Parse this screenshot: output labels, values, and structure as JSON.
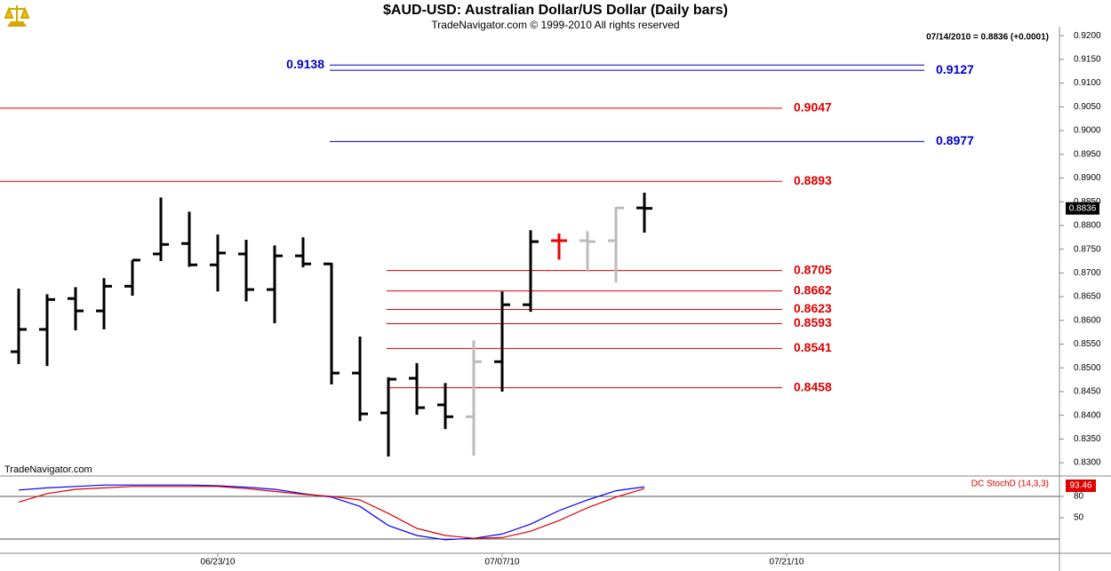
{
  "chart_data": [
    {
      "type": "ohlc",
      "title": "$AUD-USD:  Australian Dollar/US Dollar  (Daily bars)",
      "subtitle": "TradeNavigator.com © 1999-2010 All rights reserved",
      "header": "07/14/2010 = 0.8836 (+0.0001)",
      "watermark": "TradeNavigator.com",
      "categories": [
        null,
        null,
        null,
        null,
        null,
        null,
        null,
        "06/23/10",
        null,
        null,
        null,
        null,
        null,
        null,
        null,
        null,
        null,
        "07/07/10",
        null,
        null,
        null,
        null,
        null,
        null,
        null,
        null,
        null,
        "07/21/10",
        null,
        null,
        null,
        null,
        null,
        null,
        null,
        null,
        null
      ],
      "open": [
        0.8534,
        0.8581,
        0.8646,
        0.862,
        0.8672,
        0.874,
        0.8762,
        0.8717,
        0.874,
        0.8665,
        0.8736,
        0.8719,
        0.8489,
        0.8405,
        0.8478,
        0.8422,
        0.8397,
        0.8513,
        0.8633,
        0.8768,
        0.8768,
        0.8768,
        0.8837,
        null,
        null,
        null,
        null,
        null,
        null,
        null,
        null,
        null,
        null,
        null,
        null,
        null,
        null
      ],
      "high": [
        0.8667,
        0.8655,
        0.867,
        0.8689,
        0.8727,
        0.8859,
        0.8829,
        0.8781,
        0.877,
        0.8758,
        0.8775,
        0.8721,
        0.8566,
        0.848,
        0.851,
        0.8468,
        0.8558,
        0.8661,
        0.879,
        0.8783,
        0.8788,
        0.8839,
        0.8869,
        null,
        null,
        null,
        null,
        null,
        null,
        null,
        null,
        null,
        null,
        null,
        null,
        null,
        null
      ],
      "low": [
        0.8508,
        0.8504,
        0.8579,
        0.8581,
        0.8652,
        0.8725,
        0.8713,
        0.8661,
        0.864,
        0.8594,
        0.8712,
        0.8465,
        0.8388,
        0.8313,
        0.8401,
        0.8371,
        0.8315,
        0.845,
        0.8618,
        0.8728,
        0.8702,
        0.868,
        0.8785,
        null,
        null,
        null,
        null,
        null,
        null,
        null,
        null,
        null,
        null,
        null,
        null,
        null,
        null
      ],
      "close": [
        0.8581,
        0.8644,
        0.862,
        0.8672,
        0.8727,
        0.876,
        0.8717,
        0.8742,
        0.8665,
        0.8736,
        0.8719,
        0.8489,
        0.8403,
        0.8476,
        0.8416,
        0.8397,
        0.8513,
        0.8633,
        0.8766,
        0.8768,
        0.8766,
        0.8837,
        0.8836,
        null,
        null,
        null,
        null,
        null,
        null,
        null,
        null,
        null,
        null,
        null,
        null,
        null,
        null
      ],
      "colors": [
        "#000000",
        "#000000",
        "#000000",
        "#000000",
        "#000000",
        "#000000",
        "#000000",
        "#000000",
        "#000000",
        "#000000",
        "#000000",
        "#000000",
        "#000000",
        "#000000",
        "#000000",
        "#000000",
        "#bbbbbb",
        "#000000",
        "#000000",
        "#ee0000",
        "#bbbbbb",
        "#bbbbbb",
        "#000000",
        null,
        null,
        null,
        null,
        null,
        null,
        null,
        null,
        null,
        null,
        null,
        null,
        null,
        null
      ],
      "ylim": [
        0.8274,
        0.9219
      ],
      "yticks": [
        {
          "value": 0.83,
          "label": "0.8300"
        },
        {
          "value": 0.835,
          "label": "0.8350"
        },
        {
          "value": 0.84,
          "label": "0.8400"
        },
        {
          "value": 0.845,
          "label": "0.8450"
        },
        {
          "value": 0.85,
          "label": "0.8500"
        },
        {
          "value": 0.855,
          "label": "0.8550"
        },
        {
          "value": 0.86,
          "label": "0.8600"
        },
        {
          "value": 0.865,
          "label": "0.8650"
        },
        {
          "value": 0.87,
          "label": "0.8700"
        },
        {
          "value": 0.875,
          "label": "0.8750"
        },
        {
          "value": 0.88,
          "label": "0.8800"
        },
        {
          "value": 0.885,
          "label": "0.8850"
        },
        {
          "value": 0.89,
          "label": "0.8900"
        },
        {
          "value": 0.895,
          "label": "0.8950"
        },
        {
          "value": 0.9,
          "label": "0.9000"
        },
        {
          "value": 0.905,
          "label": "0.9050"
        },
        {
          "value": 0.91,
          "label": "0.9100"
        },
        {
          "value": 0.915,
          "label": "0.9150"
        },
        {
          "value": 0.92,
          "label": "0.9200"
        }
      ],
      "xticks": [
        {
          "value": 7,
          "label": "06/23/10"
        },
        {
          "value": 17,
          "label": "07/07/10"
        },
        {
          "value": 27,
          "label": "07/21/10"
        }
      ],
      "levels": [
        {
          "value": 0.9138,
          "color": "#0000cc",
          "from": 11,
          "label_side": "left"
        },
        {
          "value": 0.9127,
          "color": "#0000cc",
          "from": 11
        },
        {
          "value": 0.9047,
          "color": "#dd0000"
        },
        {
          "value": 0.8977,
          "color": "#0000cc",
          "from": 11
        },
        {
          "value": 0.8893,
          "color": "#dd0000"
        },
        {
          "value": 0.8705,
          "color": "#dd0000",
          "from": 13
        },
        {
          "value": 0.8662,
          "color": "#dd0000",
          "from": 13
        },
        {
          "value": 0.8623,
          "color": "#dd0000",
          "from": 13
        },
        {
          "value": 0.8593,
          "color": "#dd0000",
          "from": 13
        },
        {
          "value": 0.8541,
          "color": "#dd0000",
          "from": 13
        },
        {
          "value": 0.8458,
          "color": "#dd0000",
          "from": 13
        }
      ]
    },
    {
      "type": "line",
      "title": "DC StochD (14,3,3)",
      "series": [
        {
          "color": "#0000ff",
          "values": [
            89,
            92,
            94,
            96,
            96,
            96,
            96,
            95,
            93,
            90,
            84,
            79,
            66,
            39,
            25,
            19,
            21,
            27,
            41,
            60,
            75,
            88,
            93.46,
            null,
            null,
            null,
            null,
            null,
            null,
            null,
            null,
            null,
            null,
            null,
            null,
            null,
            null
          ]
        },
        {
          "color": "#dd0000",
          "values": [
            72,
            84,
            90,
            92,
            94,
            94,
            94,
            94,
            91,
            87,
            83,
            80,
            75,
            56,
            35,
            25,
            21,
            22,
            31,
            46,
            64,
            79,
            91,
            null,
            null,
            null,
            null,
            null,
            null,
            null,
            null,
            null,
            null,
            null,
            null,
            null,
            null
          ]
        }
      ],
      "ylim": [
        0,
        100
      ],
      "yticks": [
        50,
        80
      ],
      "levels": [
        80,
        20
      ]
    }
  ]
}
